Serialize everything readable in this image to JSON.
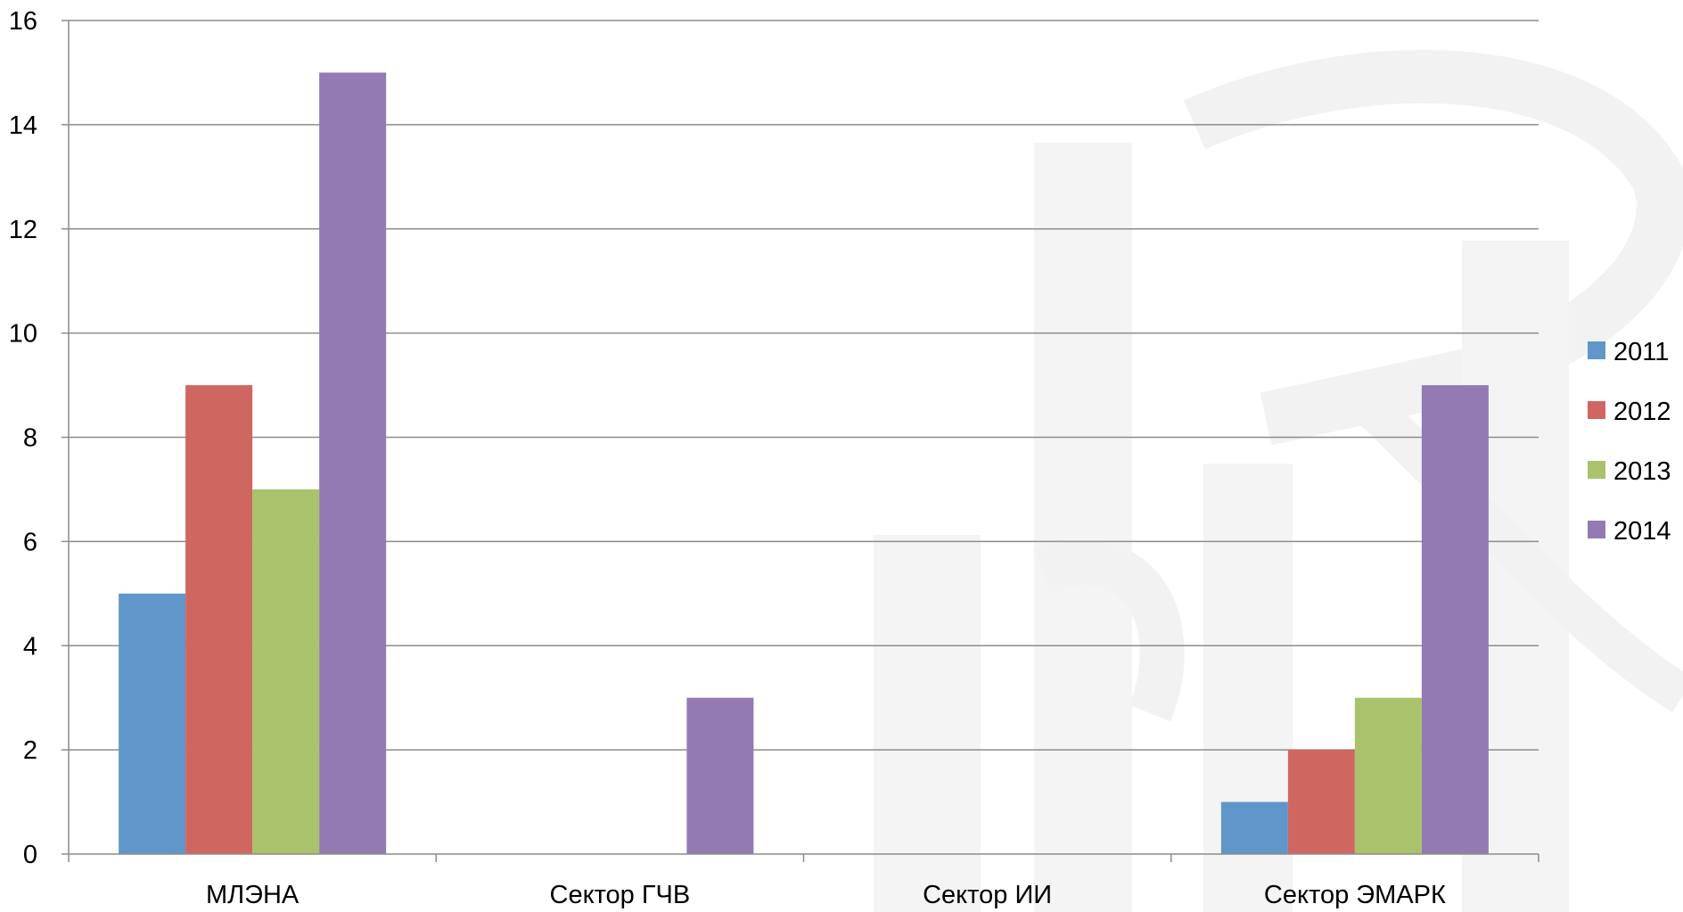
{
  "chart_data": {
    "type": "bar",
    "categories": [
      "МЛЭНА",
      "Сектор ГЧВ",
      "Сектор ИИ",
      "Сектор ЭМАРК"
    ],
    "series": [
      {
        "name": "2011",
        "color": "#6096c9",
        "values": [
          5,
          0,
          0,
          1
        ]
      },
      {
        "name": "2012",
        "color": "#cf6660",
        "values": [
          9,
          0,
          0,
          2
        ]
      },
      {
        "name": "2013",
        "color": "#aac26b",
        "values": [
          7,
          0,
          0,
          3
        ]
      },
      {
        "name": "2014",
        "color": "#937ab3",
        "values": [
          15,
          3,
          0,
          9
        ]
      }
    ],
    "yticks": [
      0,
      2,
      4,
      6,
      8,
      10,
      12,
      14,
      16
    ],
    "ylim": [
      0,
      16
    ],
    "grid": true,
    "legend_position": "right"
  }
}
